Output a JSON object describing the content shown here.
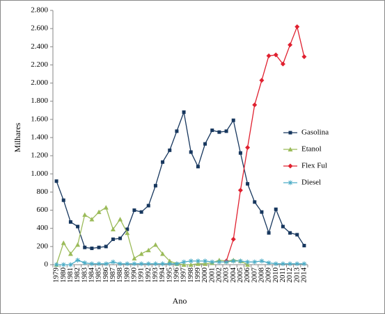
{
  "chart_data": {
    "type": "line",
    "categories": [
      "1979",
      "1980",
      "1981",
      "1982",
      "1983",
      "1984",
      "1985",
      "1986",
      "1987",
      "1988",
      "1989",
      "1990",
      "1991",
      "1992",
      "1993",
      "1994",
      "1995",
      "1996",
      "1997",
      "1998",
      "1999",
      "2000",
      "2001",
      "2002",
      "2003",
      "2004",
      "2005",
      "2006",
      "2007",
      "2008",
      "2009",
      "2010",
      "2011",
      "2012",
      "2013",
      "2014"
    ],
    "series": [
      {
        "name": "Gasolina",
        "color": "#17375e",
        "marker": "square",
        "values": [
          920,
          710,
          470,
          420,
          190,
          180,
          190,
          200,
          280,
          290,
          390,
          600,
          580,
          650,
          870,
          1130,
          1260,
          1470,
          1680,
          1240,
          1080,
          1330,
          1480,
          1460,
          1470,
          1590,
          1230,
          890,
          690,
          580,
          350,
          610,
          420,
          350,
          330,
          210
        ]
      },
      {
        "name": "Etanol",
        "color": "#9bbb59",
        "marker": "triangle",
        "values": [
          0,
          240,
          120,
          220,
          550,
          500,
          580,
          630,
          390,
          500,
          350,
          70,
          120,
          160,
          220,
          120,
          40,
          10,
          0,
          0,
          10,
          10,
          20,
          50,
          40,
          50,
          40,
          0,
          null,
          null,
          null,
          null,
          null,
          null,
          null,
          null
        ]
      },
      {
        "name": "Flex Ful",
        "color": "#e0202f",
        "marker": "diamond",
        "values": [
          null,
          null,
          null,
          null,
          null,
          null,
          null,
          null,
          null,
          null,
          null,
          null,
          null,
          null,
          null,
          null,
          null,
          null,
          null,
          null,
          null,
          null,
          null,
          null,
          40,
          280,
          820,
          1290,
          1760,
          2030,
          2300,
          2310,
          2210,
          2420,
          2620,
          2290
        ]
      },
      {
        "name": "Diesel",
        "color": "#4bacc6",
        "marker": "star",
        "values": [
          0,
          0,
          0,
          50,
          20,
          10,
          10,
          10,
          30,
          10,
          10,
          10,
          10,
          10,
          10,
          10,
          10,
          10,
          30,
          40,
          40,
          40,
          30,
          30,
          30,
          40,
          40,
          30,
          30,
          40,
          20,
          10,
          10,
          10,
          10,
          10
        ]
      }
    ],
    "ylabel": "Milhares",
    "xlabel": "Ano",
    "ylim": [
      0,
      2800
    ],
    "yticks": [
      0,
      {
        "value": 200,
        "label": "200"
      },
      {
        "value": 400,
        "label": "400"
      },
      {
        "value": 600,
        "label": "600"
      },
      {
        "value": 800,
        "label": "800"
      },
      {
        "value": 1000,
        "label": "1.000"
      },
      {
        "value": 1200,
        "label": "1.200"
      },
      {
        "value": 1400,
        "label": "1.400"
      },
      {
        "value": 1600,
        "label": "1.600"
      },
      {
        "value": 1800,
        "label": "1.800"
      },
      {
        "value": 2000,
        "label": "2.000"
      },
      {
        "value": 2200,
        "label": "2.200"
      },
      {
        "value": 2400,
        "label": "2.400"
      },
      {
        "value": 2600,
        "label": "2.600"
      },
      {
        "value": 2800,
        "label": "2.800"
      }
    ],
    "legend": "right"
  }
}
